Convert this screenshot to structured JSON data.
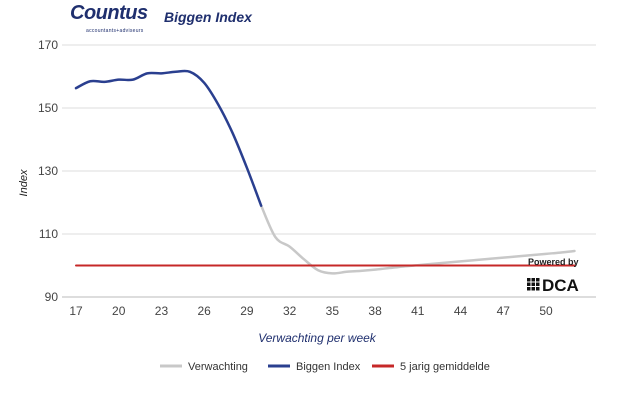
{
  "header": {
    "logo_text": "Countus",
    "logo_tagline": "accountants+adviseurs",
    "title": "Biggen Index"
  },
  "watermark": {
    "powered_by": "Powered by",
    "brand": "DCA"
  },
  "colors": {
    "verwachting": "#c8c8c8",
    "biggen": "#2a3f8f",
    "avg": "#c62828",
    "grid": "#dddddd"
  },
  "chart_data": {
    "type": "line",
    "title": "Biggen Index",
    "xlabel": "Verwachting per week",
    "ylabel": "Index",
    "xlim": [
      17,
      52
    ],
    "ylim": [
      90,
      170
    ],
    "xticks": [
      17,
      20,
      23,
      26,
      29,
      32,
      35,
      38,
      41,
      44,
      47,
      50
    ],
    "yticks": [
      90,
      110,
      130,
      150,
      170
    ],
    "grid": true,
    "legend_position": "bottom",
    "series": [
      {
        "name": "Verwachting",
        "color": "#c8c8c8",
        "x": [
          30,
          31,
          32,
          33,
          34,
          35,
          36,
          37,
          38,
          39,
          40,
          41,
          42,
          43,
          44,
          45,
          46,
          47,
          48,
          49,
          50,
          51,
          52
        ],
        "y": [
          119,
          109,
          106,
          102,
          98.5,
          97.5,
          98,
          98.3,
          98.7,
          99.2,
          99.7,
          100.1,
          100.5,
          100.9,
          101.3,
          101.7,
          102.1,
          102.5,
          102.9,
          103.3,
          103.7,
          104.1,
          104.6
        ]
      },
      {
        "name": "Biggen Index",
        "color": "#2a3f8f",
        "x": [
          17,
          18,
          19,
          20,
          21,
          22,
          23,
          24,
          25,
          26,
          27,
          28,
          29,
          30
        ],
        "y": [
          156.3,
          158.5,
          158.3,
          159,
          159,
          161,
          161,
          161.5,
          161.5,
          158,
          151,
          142,
          131,
          119
        ]
      },
      {
        "name": "5 jarig gemiddelde",
        "color": "#c62828",
        "x": [
          17,
          52
        ],
        "y": [
          100,
          100
        ]
      }
    ]
  }
}
